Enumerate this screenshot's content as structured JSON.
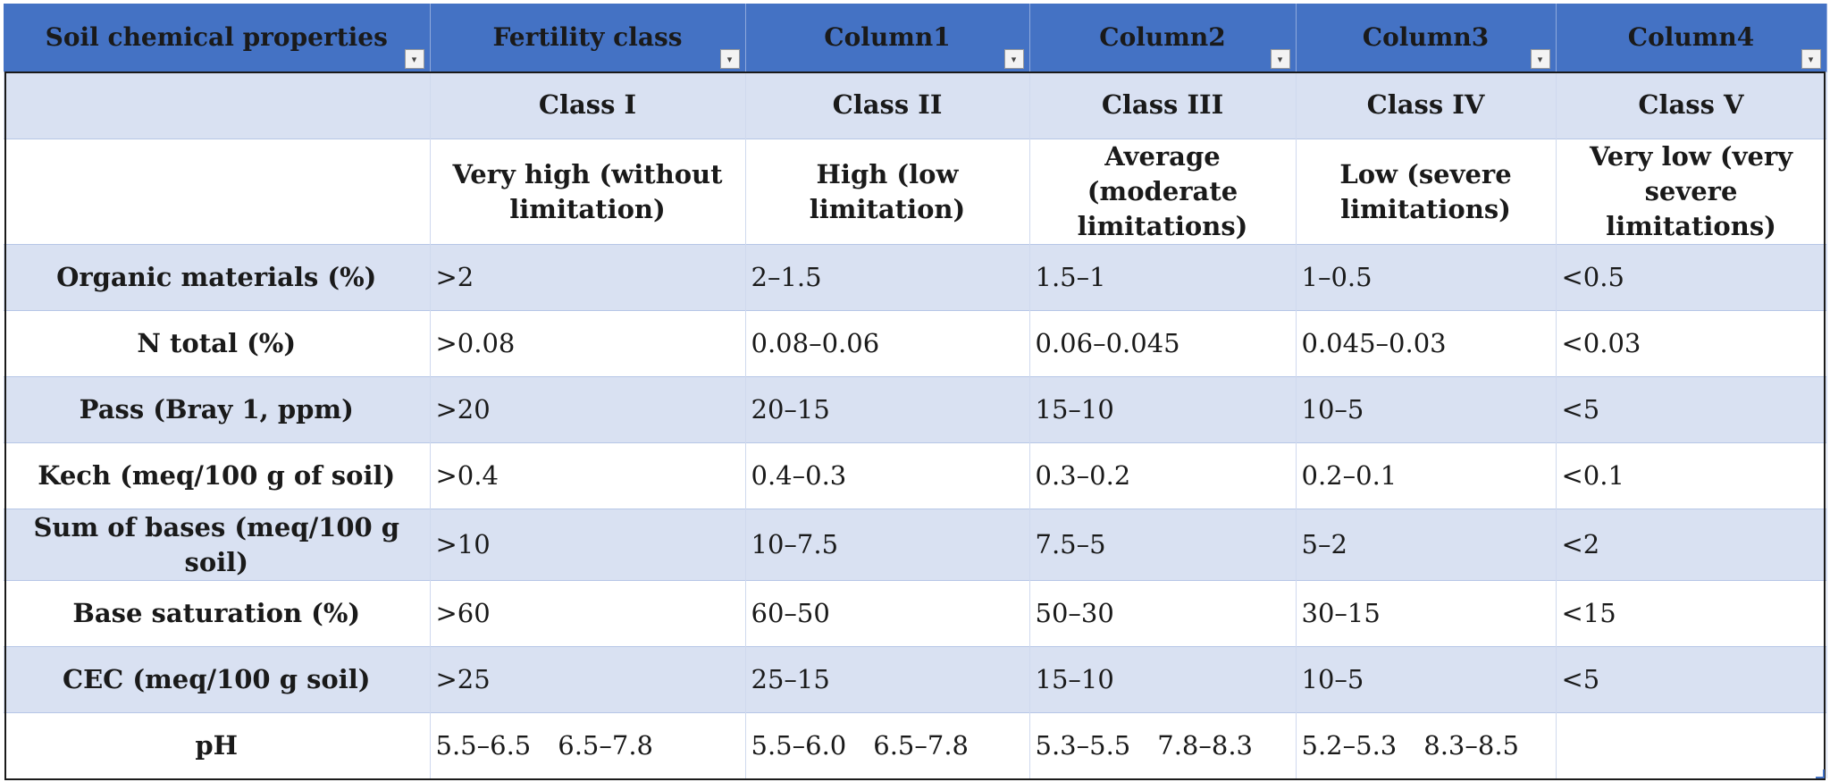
{
  "header": [
    "Soil chemical properties",
    "Fertility class",
    "Column1",
    "Column2",
    "Column3",
    "Column4"
  ],
  "filter_icon": "dropdown-arrow-icon",
  "class_row": [
    "",
    "Class I",
    "Class II",
    "Class III",
    "Class IV",
    "Class V"
  ],
  "desc_row": [
    "",
    "Very high (without limitation)",
    "High (low limitation)",
    "Average (moderate limitations)",
    "Low (severe limitations)",
    "Very low (very severe limitations)"
  ],
  "rows": [
    {
      "label": "Organic materials (%)",
      "values": [
        ">2",
        "2–1.5",
        "1.5–1",
        "1–0.5",
        "<0.5"
      ]
    },
    {
      "label": "N total (%)",
      "values": [
        ">0.08",
        "0.08–0.06",
        "0.06–0.045",
        "0.045–0.03",
        "<0.03"
      ]
    },
    {
      "label": "Pass (Bray 1, ppm)",
      "values": [
        ">20",
        "20–15",
        "15–10",
        "10–5",
        "<5"
      ]
    },
    {
      "label": "Kech (meq/100 g of soil)",
      "values": [
        ">0.4",
        "0.4–0.3",
        "0.3–0.2",
        "0.2–0.1",
        "<0.1"
      ]
    },
    {
      "label": "Sum of bases (meq/100 g soil)",
      "values": [
        ">10",
        "10–7.5",
        "7.5–5",
        "5–2",
        "<2"
      ]
    },
    {
      "label": "Base saturation (%)",
      "values": [
        ">60",
        "60–50",
        "50–30",
        "30–15",
        "<15"
      ]
    },
    {
      "label": "CEC (meq/100 g soil)",
      "values": [
        ">25",
        "25–15",
        "15–10",
        "10–5",
        "<5"
      ]
    }
  ],
  "ph_row": {
    "label": "pH",
    "values": [
      [
        "5.5–6.5",
        "6.5–7.8"
      ],
      [
        "5.5–6.0",
        "6.5–7.8"
      ],
      [
        "5.3–5.5",
        "7.8–8.3"
      ],
      [
        "5.2–5.3",
        "8.3–8.5"
      ],
      []
    ]
  },
  "colors": {
    "header_bg": "#4472c4",
    "band_bg": "#d9e1f2",
    "plain_bg": "#ffffff"
  }
}
